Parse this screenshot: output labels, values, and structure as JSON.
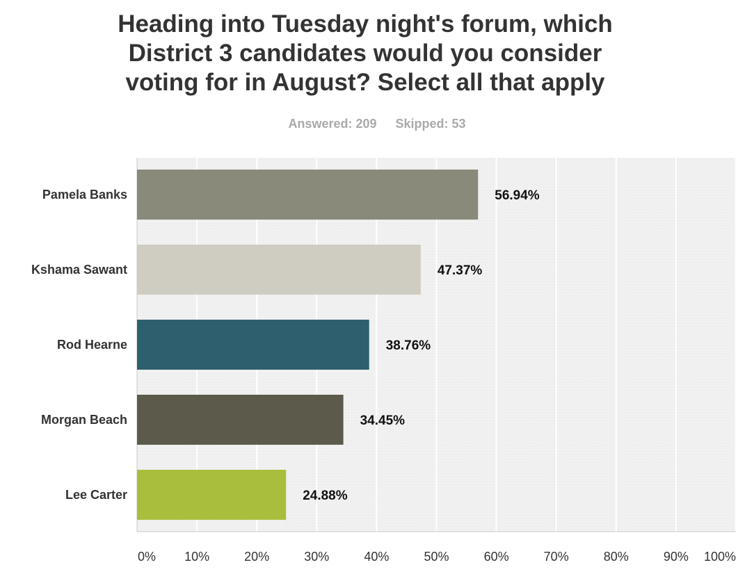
{
  "title": "Heading into Tuesday night's forum, which\nDistrict 3 candidates would you consider\nvoting for in August? Select all that apply",
  "stats": {
    "answered": "Answered: 209",
    "skipped": "Skipped: 53"
  },
  "chart_data": {
    "type": "bar",
    "orientation": "horizontal",
    "categories": [
      "Pamela Banks",
      "Kshama Sawant",
      "Rod Hearne",
      "Morgan Beach",
      "Lee Carter"
    ],
    "values": [
      56.94,
      47.37,
      38.76,
      34.45,
      24.88
    ],
    "value_labels": [
      "56.94%",
      "47.37%",
      "38.76%",
      "34.45%",
      "24.88%"
    ],
    "colors": [
      "#8a8a7a",
      "#cfcdc2",
      "#2e5f6e",
      "#5c5b4b",
      "#a8be3c"
    ],
    "xlim": [
      0,
      100
    ],
    "ticks": [
      0,
      10,
      20,
      30,
      40,
      50,
      60,
      70,
      80,
      90,
      100
    ],
    "tick_labels": [
      "0%",
      "10%",
      "20%",
      "30%",
      "40%",
      "50%",
      "60%",
      "70%",
      "80%",
      "90%",
      "100%"
    ],
    "grid": true,
    "legend": "none"
  }
}
